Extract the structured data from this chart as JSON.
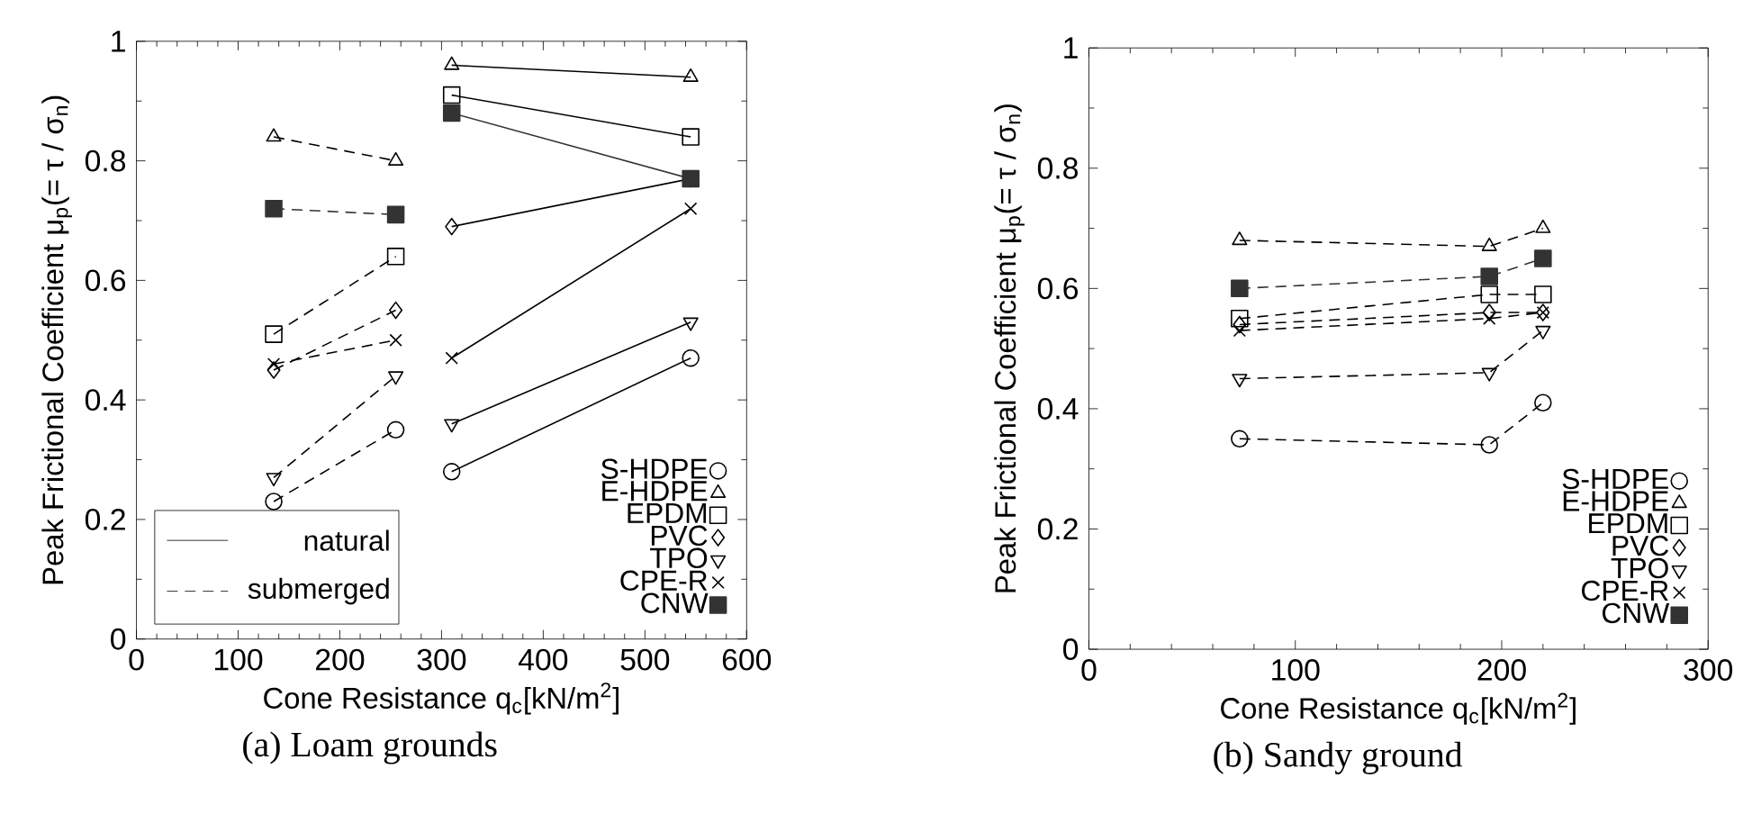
{
  "chart_data": [
    {
      "type": "line",
      "title": "(a) Loam grounds",
      "xlabel": "Cone Resistance q$_{c}$[kN/m$^{2}$]",
      "ylabel": "Peak Frictional Coefficient μ$_{p}$(= τ / σ$_{n}$)",
      "xlim": [
        0,
        600
      ],
      "ylim": [
        0,
        1
      ],
      "xticks": [
        0,
        100,
        200,
        300,
        400,
        500,
        600
      ],
      "yticks": [
        0,
        0.2,
        0.4,
        0.6,
        0.8,
        1
      ],
      "legend": "bottom right",
      "grid": false,
      "annotations": [
        "natural",
        "submerged"
      ],
      "series": [
        {
          "name": "S-HDPE",
          "color": "#000000",
          "marker": "circle",
          "line_style": "solid",
          "x": [
            310,
            545
          ],
          "values": [
            0.28,
            0.47
          ]
        },
        {
          "name": "E-HDPE",
          "color": "#000000",
          "marker": "triangle",
          "line_style": "solid",
          "x": [
            310,
            545
          ],
          "values": [
            0.96,
            0.94
          ]
        },
        {
          "name": "EPDM",
          "color": "#000000",
          "marker": "square",
          "line_style": "solid",
          "x": [
            310,
            545
          ],
          "values": [
            0.91,
            0.84
          ]
        },
        {
          "name": "PVC",
          "color": "#000000",
          "marker": "diamond",
          "line_style": "solid",
          "x": [
            310,
            545
          ],
          "values": [
            0.69,
            0.77
          ]
        },
        {
          "name": "TPO",
          "color": "#000000",
          "marker": "triangle_down",
          "line_style": "solid",
          "x": [
            310,
            545
          ],
          "values": [
            0.36,
            0.53
          ]
        },
        {
          "name": "CPE-R",
          "color": "#000000",
          "marker": "cross",
          "line_style": "solid",
          "x": [
            310,
            545
          ],
          "values": [
            0.47,
            0.72
          ]
        },
        {
          "name": "CNW",
          "color": "#333333",
          "marker": "square_filled",
          "line_style": "solid",
          "x": [
            310,
            545
          ],
          "values": [
            0.88,
            0.77
          ]
        },
        {
          "color": "#000000",
          "marker": "circle",
          "line_style": "dashed",
          "x": [
            135,
            255
          ],
          "values": [
            0.23,
            0.35
          ]
        },
        {
          "color": "#000000",
          "marker": "triangle",
          "line_style": "dashed",
          "x": [
            135,
            255
          ],
          "values": [
            0.84,
            0.8
          ]
        },
        {
          "color": "#000000",
          "marker": "square",
          "line_style": "dashed",
          "x": [
            135,
            255
          ],
          "values": [
            0.51,
            0.64
          ]
        },
        {
          "color": "#000000",
          "marker": "diamond",
          "line_style": "dashed",
          "x": [
            135,
            255
          ],
          "values": [
            0.45,
            0.55
          ]
        },
        {
          "color": "#000000",
          "marker": "triangle_down",
          "line_style": "dashed",
          "x": [
            135,
            255
          ],
          "values": [
            0.27,
            0.44
          ]
        },
        {
          "color": "#000000",
          "marker": "cross",
          "line_style": "dashed",
          "x": [
            135,
            255
          ],
          "values": [
            0.46,
            0.5
          ]
        },
        {
          "color": "#333333",
          "marker": "square_filled",
          "line_style": "dashed",
          "x": [
            135,
            255
          ],
          "values": [
            0.72,
            0.71
          ]
        }
      ]
    },
    {
      "type": "line",
      "title": "(b) Sandy ground",
      "xlabel": "Cone Resistance q$_{c}$[kN/m$^{2}$]",
      "ylabel": "Peak Frictional Coefficient μ$_{p}$(= τ / σ$_{n}$)",
      "xlim": [
        0,
        300
      ],
      "ylim": [
        0,
        1
      ],
      "xticks": [
        0,
        100,
        200,
        300
      ],
      "yticks": [
        0,
        0.2,
        0.4,
        0.6,
        0.8,
        1
      ],
      "legend": "bottom right",
      "grid": false,
      "series": [
        {
          "name": "S-HDPE",
          "color": "#000000",
          "marker": "circle",
          "line_style": "dashed",
          "x": [
            73,
            194,
            220
          ],
          "values": [
            0.35,
            0.34,
            0.41
          ]
        },
        {
          "name": "E-HDPE",
          "color": "#000000",
          "marker": "triangle",
          "line_style": "dashed",
          "x": [
            73,
            194,
            220
          ],
          "values": [
            0.68,
            0.67,
            0.7
          ]
        },
        {
          "name": "EPDM",
          "color": "#000000",
          "marker": "square",
          "line_style": "dashed",
          "x": [
            73,
            194,
            220
          ],
          "values": [
            0.55,
            0.59,
            0.59
          ]
        },
        {
          "name": "PVC",
          "color": "#000000",
          "marker": "diamond",
          "line_style": "dashed",
          "x": [
            73,
            194,
            220
          ],
          "values": [
            0.54,
            0.56,
            0.56
          ]
        },
        {
          "name": "TPO",
          "color": "#000000",
          "marker": "triangle_down",
          "line_style": "dashed",
          "x": [
            73,
            194,
            220
          ],
          "values": [
            0.45,
            0.46,
            0.53
          ]
        },
        {
          "name": "CPE-R",
          "color": "#000000",
          "marker": "cross",
          "line_style": "dashed",
          "x": [
            73,
            194,
            220
          ],
          "values": [
            0.53,
            0.55,
            0.56
          ]
        },
        {
          "name": "CNW",
          "color": "#333333",
          "marker": "square_filled",
          "line_style": "dashed",
          "x": [
            73,
            194,
            220
          ],
          "values": [
            0.6,
            0.62,
            0.65
          ]
        }
      ]
    }
  ]
}
